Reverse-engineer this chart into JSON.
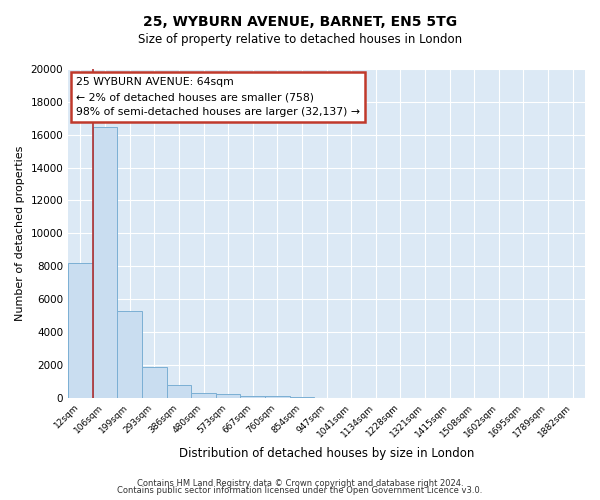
{
  "title": "25, WYBURN AVENUE, BARNET, EN5 5TG",
  "subtitle": "Size of property relative to detached houses in London",
  "bar_labels": [
    "12sqm",
    "106sqm",
    "199sqm",
    "293sqm",
    "386sqm",
    "480sqm",
    "573sqm",
    "667sqm",
    "760sqm",
    "854sqm",
    "947sqm",
    "1041sqm",
    "1134sqm",
    "1228sqm",
    "1321sqm",
    "1415sqm",
    "1508sqm",
    "1602sqm",
    "1695sqm",
    "1789sqm",
    "1882sqm"
  ],
  "bar_values": [
    8200,
    16500,
    5300,
    1850,
    800,
    300,
    200,
    120,
    100,
    70,
    0,
    0,
    0,
    0,
    0,
    0,
    0,
    0,
    0,
    0,
    0
  ],
  "bar_color": "#c9ddf0",
  "bar_edge_color": "#7bafd4",
  "plot_bg_color": "#dce9f5",
  "fig_bg_color": "#ffffff",
  "grid_color": "#ffffff",
  "ylabel": "Number of detached properties",
  "xlabel": "Distribution of detached houses by size in London",
  "ylim": [
    0,
    20000
  ],
  "yticks": [
    0,
    2000,
    4000,
    6000,
    8000,
    10000,
    12000,
    14000,
    16000,
    18000,
    20000
  ],
  "annotation_title": "25 WYBURN AVENUE: 64sqm",
  "annotation_line1": "← 2% of detached houses are smaller (758)",
  "annotation_line2": "98% of semi-detached houses are larger (32,137) →",
  "vline_color": "#b03030",
  "vline_x_idx": 0.52,
  "footer1": "Contains HM Land Registry data © Crown copyright and database right 2024.",
  "footer2": "Contains public sector information licensed under the Open Government Licence v3.0."
}
